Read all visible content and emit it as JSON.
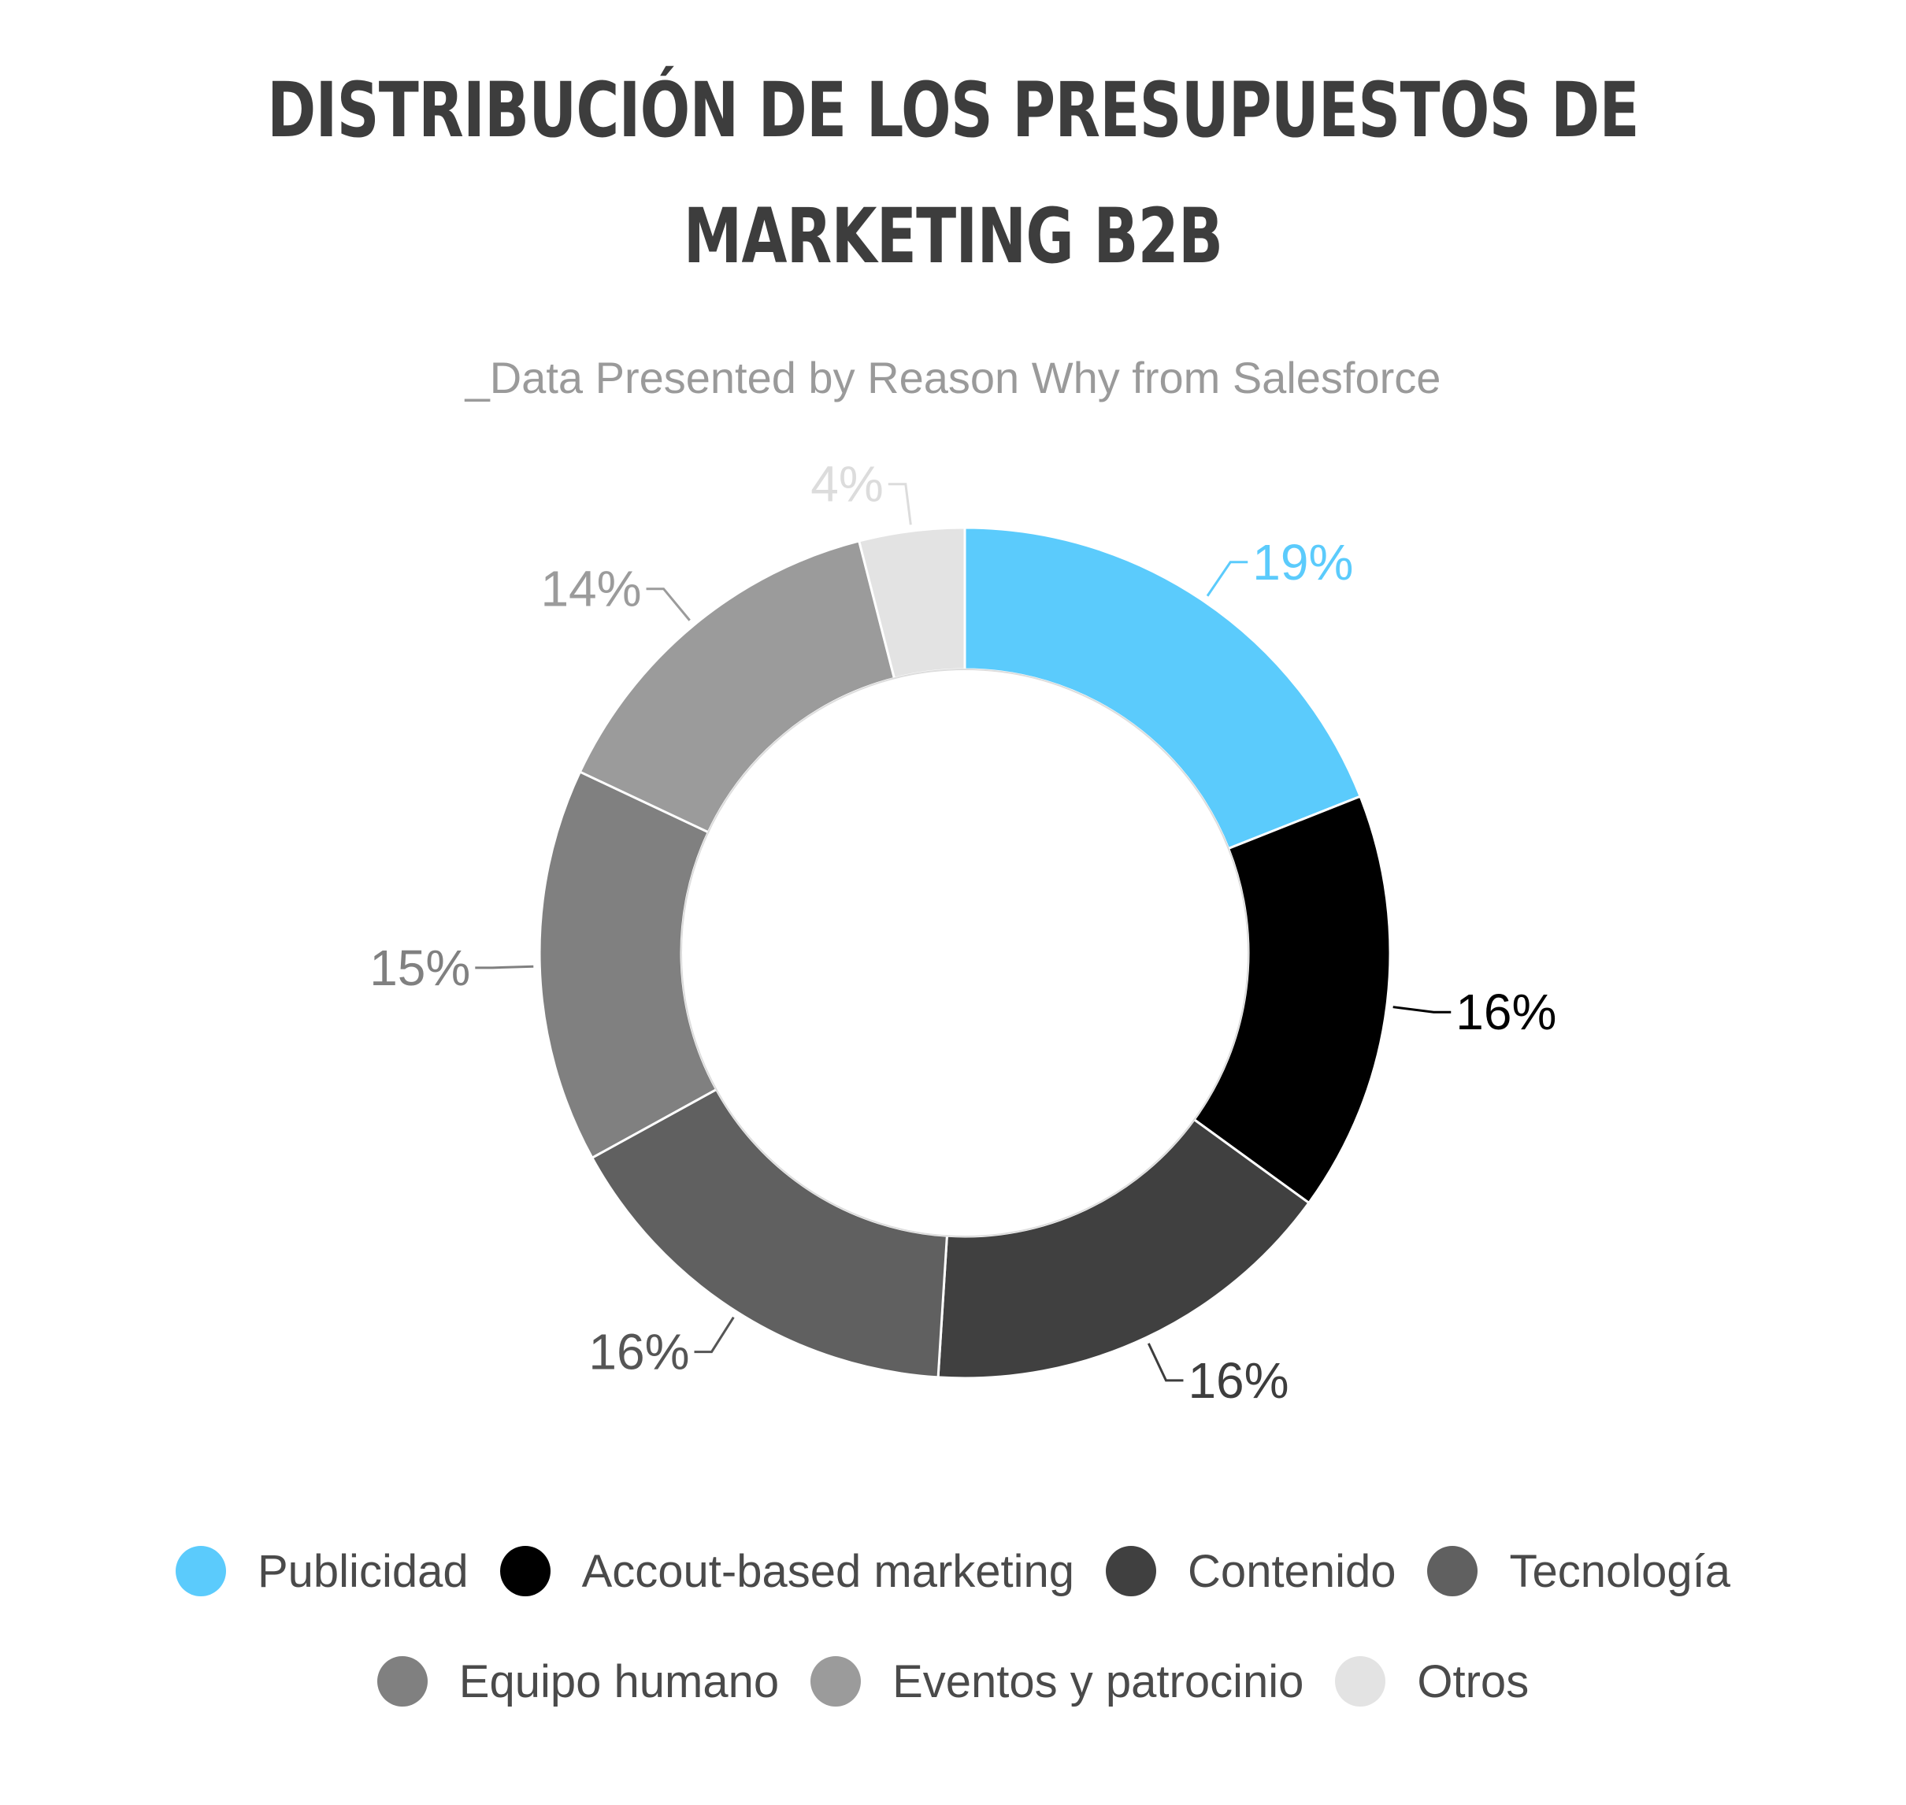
{
  "title_lines": [
    "DISTRIBUCIÓN DE LOS PRESUPUESTOS DE",
    "MARKETING B2B"
  ],
  "subtitle": "_Data Presented by Reason Why from Salesforce",
  "chart_data": {
    "type": "pie",
    "variant": "donut",
    "title": "DISTRIBUCIÓN DE LOS PRESUPUESTOS DE MARKETING B2B",
    "subtitle": "_Data Presented by Reason Why from Salesforce",
    "categories": [
      "Publicidad",
      "Accout-based marketing",
      "Contenido",
      "Tecnología",
      "Equipo humano",
      "Eventos y patrocinio",
      "Otros"
    ],
    "values": [
      19,
      16,
      16,
      16,
      15,
      14,
      4
    ],
    "labels": [
      "19%",
      "16%",
      "16%",
      "16%",
      "15%",
      "14%",
      "4%"
    ],
    "colors": [
      "#5bcbfc",
      "#000000",
      "#404040",
      "#606060",
      "#808080",
      "#9b9b9b",
      "#e3e3e3"
    ],
    "label_colors": [
      "#5bcbfc",
      "#000000",
      "#3d3d3d",
      "#555555",
      "#808080",
      "#9b9b9b",
      "#dcdcdc"
    ],
    "legend_position": "bottom",
    "start_angle": "top",
    "direction": "clockwise"
  }
}
